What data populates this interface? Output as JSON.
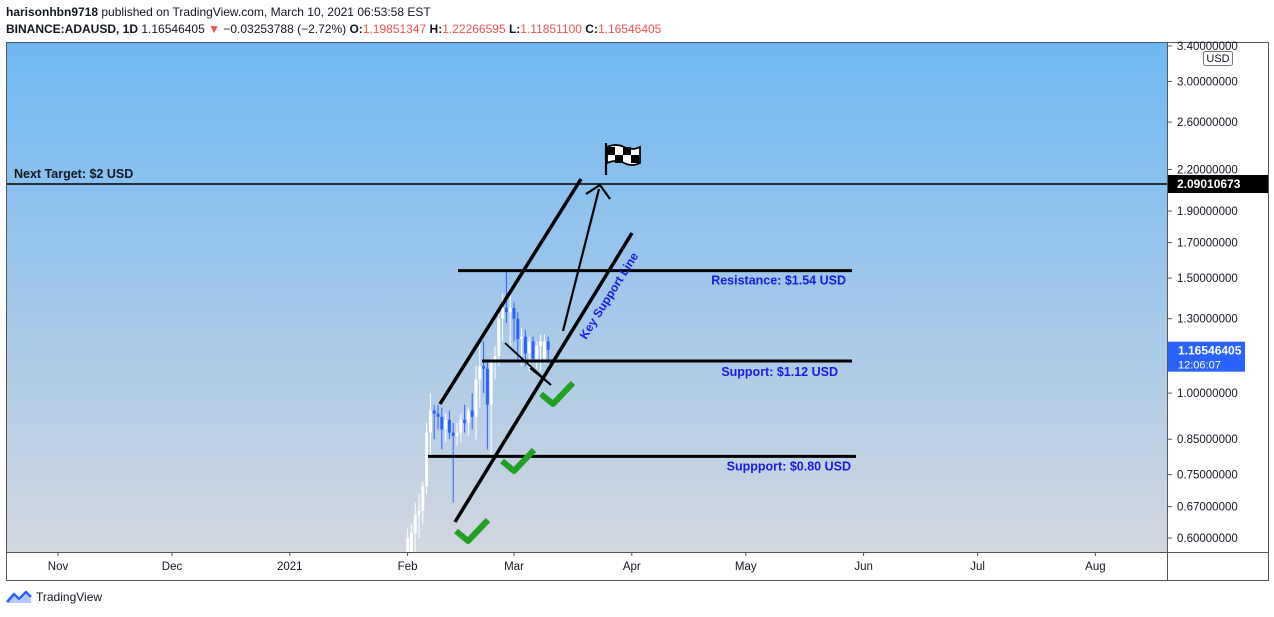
{
  "header": {
    "author": "harisonhbn9718",
    "published_text": "published on TradingView.com, March 10, 2021 06:53:58 EST",
    "symbol": "BINANCE:ADAUSD, 1D",
    "last": "1.16546405",
    "change_arrow": "▼",
    "change": "−0.03253788 (−2.72%)",
    "o_label": "O:",
    "o_value": "1.19851347",
    "h_label": "H:",
    "h_value": "1.22266595",
    "l_label": "L:",
    "l_value": "1.11851100",
    "c_label": "C:",
    "c_value": "1.16546405"
  },
  "brand": {
    "name": "TradingView"
  },
  "colors": {
    "bg_top": "#6fb8f3",
    "bg_bottom": "#d2d7e0",
    "bull": "#ffffff",
    "bear": "#2962ff",
    "text_blue": "#1a1ae6",
    "check_green": "#22a022",
    "negative": "#ef5350"
  },
  "chart_data": {
    "type": "candlestick",
    "scale": "log",
    "currency_badge": "USD",
    "x_ticks": [
      {
        "label": "Nov",
        "date": "2020-11-01"
      },
      {
        "label": "Dec",
        "date": "2020-12-01"
      },
      {
        "label": "2021",
        "date": "2021-01-01"
      },
      {
        "label": "Feb",
        "date": "2021-02-01"
      },
      {
        "label": "Mar",
        "date": "2021-03-01"
      },
      {
        "label": "Apr",
        "date": "2021-04-01"
      },
      {
        "label": "May",
        "date": "2021-05-01"
      },
      {
        "label": "Jun",
        "date": "2021-06-01"
      },
      {
        "label": "Jul",
        "date": "2021-07-01"
      },
      {
        "label": "Aug",
        "date": "2021-08-01"
      }
    ],
    "y_ticks": [
      {
        "label": "3.40000000",
        "value": 3.4
      },
      {
        "label": "3.00000000",
        "value": 3.0
      },
      {
        "label": "2.60000000",
        "value": 2.6
      },
      {
        "label": "2.20000000",
        "value": 2.2
      },
      {
        "label": "1.90000000",
        "value": 1.9
      },
      {
        "label": "1.70000000",
        "value": 1.7
      },
      {
        "label": "1.50000000",
        "value": 1.5
      },
      {
        "label": "1.30000000",
        "value": 1.3
      },
      {
        "label": "1.00000000",
        "value": 1.0
      },
      {
        "label": "0.85000000",
        "value": 0.85
      },
      {
        "label": "0.75000000",
        "value": 0.75
      },
      {
        "label": "0.67000000",
        "value": 0.67
      },
      {
        "label": "0.60000000",
        "value": 0.6
      }
    ],
    "ylim": [
      0.56,
      3.45
    ],
    "xlim": [
      "2020-10-25",
      "2021-08-15"
    ],
    "target_price_label": "2.09010673",
    "target_price": 2.09010673,
    "last_price_label": "1.16546405",
    "last_price": 1.16546405,
    "countdown": "12:06:07",
    "candles": [
      {
        "d": "2021-02-01",
        "o": 0.4,
        "h": 0.62,
        "l": 0.38,
        "c": 0.6
      },
      {
        "d": "2021-02-02",
        "o": 0.4,
        "h": 0.63,
        "l": 0.38,
        "c": 0.61
      },
      {
        "d": "2021-02-03",
        "o": 0.61,
        "h": 0.68,
        "l": 0.56,
        "c": 0.65
      },
      {
        "d": "2021-02-04",
        "o": 0.65,
        "h": 0.7,
        "l": 0.6,
        "c": 0.66
      },
      {
        "d": "2021-02-05",
        "o": 0.66,
        "h": 0.73,
        "l": 0.63,
        "c": 0.72
      },
      {
        "d": "2021-02-06",
        "o": 0.72,
        "h": 0.9,
        "l": 0.7,
        "c": 0.87
      },
      {
        "d": "2021-02-07",
        "o": 0.87,
        "h": 1.0,
        "l": 0.8,
        "c": 0.94
      },
      {
        "d": "2021-02-08",
        "o": 0.94,
        "h": 0.96,
        "l": 0.85,
        "c": 0.93
      },
      {
        "d": "2021-02-09",
        "o": 0.93,
        "h": 0.96,
        "l": 0.88,
        "c": 0.92
      },
      {
        "d": "2021-02-10",
        "o": 0.92,
        "h": 0.95,
        "l": 0.82,
        "c": 0.88
      },
      {
        "d": "2021-02-11",
        "o": 0.88,
        "h": 0.93,
        "l": 0.84,
        "c": 0.91
      },
      {
        "d": "2021-02-12",
        "o": 0.91,
        "h": 0.94,
        "l": 0.85,
        "c": 0.87
      },
      {
        "d": "2021-02-13",
        "o": 0.87,
        "h": 0.9,
        "l": 0.68,
        "c": 0.86
      },
      {
        "d": "2021-02-14",
        "o": 0.86,
        "h": 0.9,
        "l": 0.83,
        "c": 0.87
      },
      {
        "d": "2021-02-15",
        "o": 0.87,
        "h": 0.93,
        "l": 0.84,
        "c": 0.91
      },
      {
        "d": "2021-02-16",
        "o": 0.91,
        "h": 0.96,
        "l": 0.87,
        "c": 0.9
      },
      {
        "d": "2021-02-17",
        "o": 0.9,
        "h": 0.95,
        "l": 0.86,
        "c": 0.94
      },
      {
        "d": "2021-02-18",
        "o": 0.94,
        "h": 1.0,
        "l": 0.88,
        "c": 0.92
      },
      {
        "d": "2021-02-19",
        "o": 0.92,
        "h": 1.1,
        "l": 0.85,
        "c": 1.05
      },
      {
        "d": "2021-02-20",
        "o": 1.05,
        "h": 1.22,
        "l": 0.95,
        "c": 1.1
      },
      {
        "d": "2021-02-21",
        "o": 1.1,
        "h": 1.2,
        "l": 1.0,
        "c": 1.09
      },
      {
        "d": "2021-02-22",
        "o": 1.09,
        "h": 1.12,
        "l": 0.82,
        "c": 0.96
      },
      {
        "d": "2021-02-23",
        "o": 0.96,
        "h": 1.13,
        "l": 0.8,
        "c": 1.12
      },
      {
        "d": "2021-02-24",
        "o": 1.12,
        "h": 1.18,
        "l": 1.05,
        "c": 1.14
      },
      {
        "d": "2021-02-25",
        "o": 1.14,
        "h": 1.33,
        "l": 1.1,
        "c": 1.3
      },
      {
        "d": "2021-02-26",
        "o": 1.3,
        "h": 1.42,
        "l": 1.2,
        "c": 1.35
      },
      {
        "d": "2021-02-27",
        "o": 1.35,
        "h": 1.54,
        "l": 1.28,
        "c": 1.33
      },
      {
        "d": "2021-02-28",
        "o": 1.33,
        "h": 1.45,
        "l": 1.18,
        "c": 1.35
      },
      {
        "d": "2021-03-01",
        "o": 1.35,
        "h": 1.38,
        "l": 1.2,
        "c": 1.3
      },
      {
        "d": "2021-03-02",
        "o": 1.3,
        "h": 1.33,
        "l": 1.12,
        "c": 1.21
      },
      {
        "d": "2021-03-03",
        "o": 1.21,
        "h": 1.26,
        "l": 1.1,
        "c": 1.22
      },
      {
        "d": "2021-03-04",
        "o": 1.22,
        "h": 1.25,
        "l": 1.1,
        "c": 1.15
      },
      {
        "d": "2021-03-05",
        "o": 1.15,
        "h": 1.22,
        "l": 1.08,
        "c": 1.2
      },
      {
        "d": "2021-03-06",
        "o": 1.2,
        "h": 1.22,
        "l": 1.12,
        "c": 1.13
      },
      {
        "d": "2021-03-07",
        "o": 1.13,
        "h": 1.2,
        "l": 1.09,
        "c": 1.18
      },
      {
        "d": "2021-03-08",
        "o": 1.18,
        "h": 1.23,
        "l": 1.08,
        "c": 1.2
      },
      {
        "d": "2021-03-09",
        "o": 1.13,
        "h": 1.23,
        "l": 1.11,
        "c": 1.2
      },
      {
        "d": "2021-03-10",
        "o": 1.2,
        "h": 1.22,
        "l": 1.12,
        "c": 1.165
      }
    ],
    "annotations": {
      "next_target_label": "Next Target: $2 USD",
      "resistance_label": "Resistance: $1.54 USD",
      "support1_label": "Support: $1.12 USD",
      "support2_label": "Suppport: $0.80 USD",
      "key_support_label": "Key Support Line",
      "resistance_value": 1.54,
      "support1_value": 1.12,
      "support2_value": 0.8
    }
  }
}
